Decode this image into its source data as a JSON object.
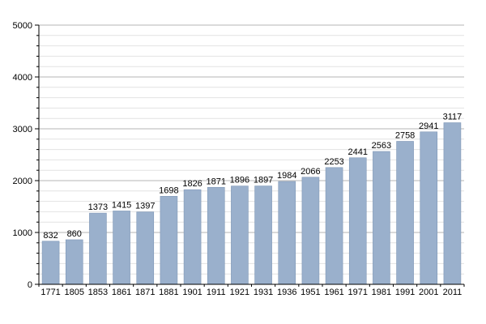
{
  "chart_data": {
    "type": "bar",
    "title": "",
    "xlabel": "",
    "ylabel": "",
    "categories": [
      "1771",
      "1805",
      "1853",
      "1861",
      "1871",
      "1881",
      "1901",
      "1911",
      "1921",
      "1931",
      "1936",
      "1951",
      "1961",
      "1971",
      "1981",
      "1991",
      "2001",
      "2011"
    ],
    "values": [
      832,
      860,
      1373,
      1415,
      1397,
      1698,
      1826,
      1871,
      1896,
      1897,
      1984,
      2066,
      2253,
      2441,
      2563,
      2758,
      2941,
      3117
    ],
    "data_labels": [
      "832",
      "860",
      "1373",
      "1415",
      "1397",
      "1698",
      "1826",
      "1871",
      "1896",
      "1897",
      "1984",
      "2066",
      "2253",
      "2441",
      "2563",
      "2758",
      "2941",
      "3117"
    ],
    "ylim": [
      0,
      5000
    ],
    "y_ticks": [
      "0",
      "1000",
      "2000",
      "3000",
      "4000",
      "5000"
    ],
    "y_minor_step": 200,
    "grid": true,
    "legend": "none",
    "colors": {
      "bar_fill": "#9ab0cc",
      "bar_stroke": "#7f97b6",
      "major_grid": "#b4b4b4",
      "minor_grid": "#e2e2e2",
      "axis": "#000000"
    }
  }
}
